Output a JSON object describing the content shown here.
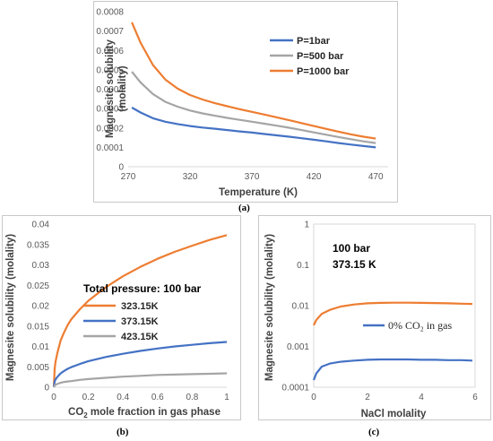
{
  "captions": {
    "a": "(a)",
    "b": "(b)",
    "c": "(c)"
  },
  "chart_data": [
    {
      "id": "a",
      "type": "line",
      "title": "",
      "xlabel": "Temperature (K)",
      "ylabel_line1": "Magnesite solubility",
      "ylabel_line2": "(molality)",
      "xlim": [
        270,
        480
      ],
      "ylim": [
        0,
        0.0008
      ],
      "xticks": [
        "270",
        "320",
        "370",
        "420",
        "470"
      ],
      "yticks": [
        "0",
        "0.0001",
        "0.0002",
        "0.0003",
        "0.0004",
        "0.0005",
        "0.0006",
        "0.0007",
        "0.0008"
      ],
      "legend_position": "top-right",
      "series": [
        {
          "name": "P=1bar",
          "color": "#4472c4",
          "x": [
            273,
            280,
            290,
            300,
            310,
            320,
            330,
            340,
            350,
            360,
            370,
            380,
            390,
            400,
            410,
            420,
            430,
            440,
            450,
            460,
            470
          ],
          "y": [
            0.000305,
            0.00028,
            0.00025,
            0.000232,
            0.00022,
            0.00021,
            0.000202,
            0.000196,
            0.000189,
            0.000182,
            0.000176,
            0.000169,
            0.000162,
            0.000155,
            0.000147,
            0.000139,
            0.000131,
            0.000122,
            0.000114,
            0.000107,
            0.0001
          ]
        },
        {
          "name": "P=500 bar",
          "color": "#a5a5a5",
          "x": [
            273,
            280,
            290,
            300,
            310,
            320,
            330,
            340,
            350,
            360,
            370,
            380,
            390,
            400,
            410,
            420,
            430,
            440,
            450,
            460,
            470
          ],
          "y": [
            0.00049,
            0.000435,
            0.000375,
            0.000335,
            0.00031,
            0.00029,
            0.000275,
            0.000263,
            0.000252,
            0.000242,
            0.000232,
            0.000222,
            0.000212,
            0.000201,
            0.000189,
            0.000177,
            0.000165,
            0.000153,
            0.000142,
            0.000131,
            0.000122
          ]
        },
        {
          "name": "P=1000 bar",
          "color": "#ed7d31",
          "x": [
            273,
            280,
            290,
            300,
            310,
            320,
            330,
            340,
            350,
            360,
            370,
            380,
            390,
            400,
            410,
            420,
            430,
            440,
            450,
            460,
            470
          ],
          "y": [
            0.000745,
            0.00064,
            0.000525,
            0.00045,
            0.000403,
            0.00037,
            0.000347,
            0.000328,
            0.000312,
            0.000297,
            0.000283,
            0.000269,
            0.000255,
            0.00024,
            0.000225,
            0.00021,
            0.000195,
            0.000181,
            0.000167,
            0.000155,
            0.000145
          ]
        }
      ]
    },
    {
      "id": "b",
      "type": "line",
      "title": "",
      "xlabel_pre": "CO",
      "xlabel_sub": "2",
      "xlabel_post": " mole fraction in gas phase",
      "ylabel": "Magnesite solubility (molality)",
      "xlim": [
        0,
        1
      ],
      "ylim": [
        0,
        0.04
      ],
      "xticks": [
        "0",
        "0.2",
        "0.4",
        "0.6",
        "0.8",
        "1"
      ],
      "yticks": [
        "0",
        "0.005",
        "0.01",
        "0.015",
        "0.02",
        "0.025",
        "0.03",
        "0.035",
        "0.04"
      ],
      "legend_title": "Total pressure: 100 bar",
      "legend_position": "center-right",
      "series": [
        {
          "name": "323.15K",
          "color": "#ed7d31",
          "x": [
            0,
            0.005,
            0.01,
            0.02,
            0.04,
            0.06,
            0.08,
            0.1,
            0.15,
            0.2,
            0.3,
            0.4,
            0.5,
            0.6,
            0.7,
            0.8,
            0.9,
            1.0
          ],
          "y": [
            0,
            0.0045,
            0.0062,
            0.0083,
            0.0115,
            0.0135,
            0.0152,
            0.0166,
            0.0191,
            0.0212,
            0.0245,
            0.0272,
            0.0295,
            0.0315,
            0.0332,
            0.0347,
            0.0361,
            0.0373
          ]
        },
        {
          "name": "373.15K",
          "color": "#4472c4",
          "x": [
            0,
            0.005,
            0.01,
            0.02,
            0.04,
            0.06,
            0.08,
            0.1,
            0.15,
            0.2,
            0.3,
            0.4,
            0.5,
            0.6,
            0.7,
            0.8,
            0.9,
            1.0
          ],
          "y": [
            0,
            0.0014,
            0.0019,
            0.0025,
            0.0034,
            0.004,
            0.0045,
            0.0049,
            0.0057,
            0.0064,
            0.0074,
            0.0082,
            0.0089,
            0.0095,
            0.01,
            0.0104,
            0.0108,
            0.0111
          ]
        },
        {
          "name": "423.15K",
          "color": "#a5a5a5",
          "x": [
            0,
            0.005,
            0.01,
            0.02,
            0.04,
            0.06,
            0.08,
            0.1,
            0.15,
            0.2,
            0.3,
            0.4,
            0.5,
            0.6,
            0.7,
            0.8,
            0.9,
            1.0
          ],
          "y": [
            0,
            0.0004,
            0.0006,
            0.0008,
            0.0011,
            0.0013,
            0.0014,
            0.0015,
            0.0018,
            0.002,
            0.0023,
            0.0026,
            0.0028,
            0.003,
            0.0031,
            0.0032,
            0.0033,
            0.0034
          ]
        }
      ]
    },
    {
      "id": "c",
      "type": "line",
      "title": "",
      "xlabel": "NaCl molality",
      "ylabel": "Magnesite solubility (molality)",
      "xlim": [
        0,
        6
      ],
      "ylim": [
        0.0001,
        1
      ],
      "yscale": "log",
      "xticks": [
        "0",
        "2",
        "4",
        "6"
      ],
      "yticks": [
        "0.0001",
        "0.001",
        "0.01",
        "0.1",
        "1"
      ],
      "annotation_line1": "100 bar",
      "annotation_line2": "373.15 K",
      "legend_position": "center",
      "series": [
        {
          "name": "0% CO₂ in gas",
          "color": "#4472c4",
          "x": [
            0,
            0.1,
            0.3,
            0.6,
            1,
            1.5,
            2,
            2.5,
            3,
            3.5,
            4,
            4.5,
            5,
            5.5,
            5.9
          ],
          "y": [
            0.00015,
            0.00022,
            0.00032,
            0.00038,
            0.00042,
            0.00045,
            0.00047,
            0.00048,
            0.00048,
            0.00048,
            0.00047,
            0.00047,
            0.00046,
            0.00046,
            0.00045
          ]
        },
        {
          "name": "",
          "color": "#ed7d31",
          "x": [
            0,
            0.1,
            0.3,
            0.6,
            1,
            1.5,
            2,
            2.5,
            3,
            3.5,
            4,
            4.5,
            5,
            5.5,
            5.9
          ],
          "y": [
            0.0033,
            0.0045,
            0.0063,
            0.0079,
            0.0095,
            0.0107,
            0.0114,
            0.0117,
            0.0118,
            0.0118,
            0.0117,
            0.0116,
            0.0114,
            0.0112,
            0.011
          ]
        }
      ]
    }
  ]
}
